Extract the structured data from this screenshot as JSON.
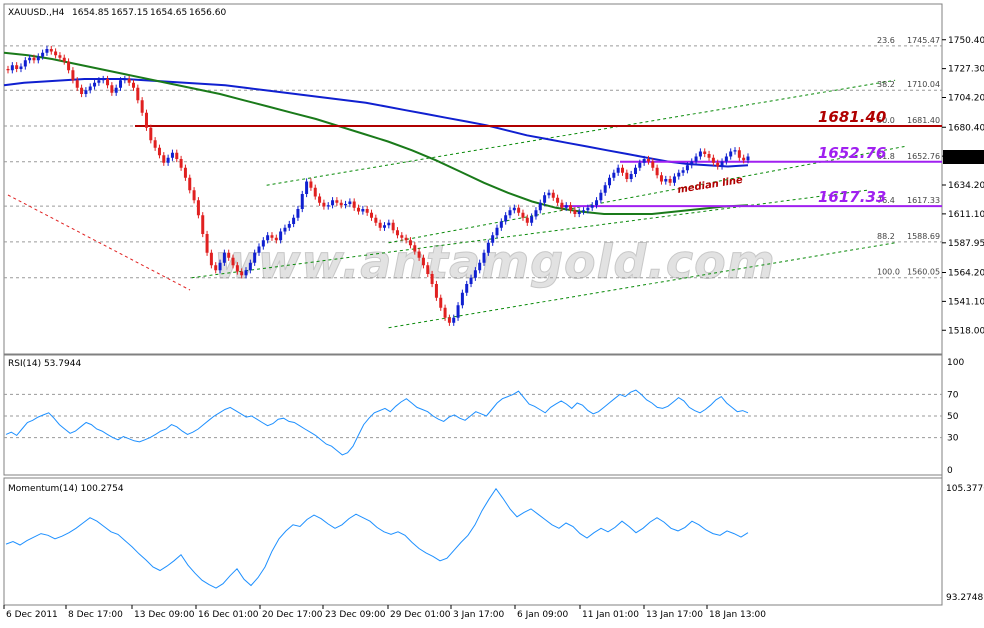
{
  "chart_data": [
    {
      "type": "candlestick",
      "header": {
        "symbol": "XAUUSD.,H4",
        "open": "1654.85",
        "high": "1657.15",
        "low": "1654.65",
        "close": "1656.60"
      },
      "price_axis": {
        "ticks": [
          "1750.40",
          "1727.30",
          "1704.20",
          "1680.40",
          "1657.30",
          "1634.20",
          "1611.10",
          "1587.95",
          "1564.20",
          "1541.10",
          "1518.00"
        ],
        "current": "1656.60"
      },
      "x_ticks": [
        "6 Dec 2011",
        "8 Dec 17:00",
        "13 Dec 09:00",
        "16 Dec 01:00",
        "20 Dec 17:00",
        "23 Dec 09:00",
        "29 Dec 01:00",
        "3 Jan 17:00",
        "6 Jan 09:00",
        "11 Jan 01:00",
        "13 Jan 17:00",
        "18 Jan 13:00"
      ],
      "fibonacci": [
        {
          "ratio": "23.6",
          "price": "1745.47"
        },
        {
          "ratio": "38.2",
          "price": "1710.04"
        },
        {
          "ratio": "50.0",
          "price": "1681.40"
        },
        {
          "ratio": "61.8",
          "price": "1652.76"
        },
        {
          "ratio": "76.4",
          "price": "1617.33"
        },
        {
          "ratio": "88.2",
          "price": "1588.69"
        },
        {
          "ratio": "100.0",
          "price": "1560.05"
        }
      ],
      "levels": [
        {
          "label": "1681.40",
          "price": 1681.4,
          "color": "#b00000"
        },
        {
          "label": "1652.76",
          "price": 1652.76,
          "color": "#a020f0"
        },
        {
          "label": "1617.33",
          "price": 1617.33,
          "color": "#a020f0"
        }
      ],
      "annotation": "median line",
      "watermark": "www.antamgold.com",
      "close": [
        1726,
        1730,
        1727,
        1729,
        1734,
        1736,
        1734,
        1737,
        1740,
        1743,
        1741,
        1738,
        1736,
        1733,
        1726,
        1718,
        1712,
        1707,
        1710,
        1713,
        1716,
        1718,
        1719,
        1714,
        1708,
        1712,
        1718,
        1719,
        1716,
        1712,
        1702,
        1692,
        1680,
        1670,
        1664,
        1658,
        1652,
        1656,
        1660,
        1655,
        1648,
        1640,
        1630,
        1622,
        1610,
        1595,
        1580,
        1570,
        1566,
        1572,
        1580,
        1576,
        1570,
        1565,
        1562,
        1566,
        1572,
        1580,
        1585,
        1590,
        1594,
        1592,
        1590,
        1597,
        1600,
        1603,
        1608,
        1615,
        1627,
        1637,
        1632,
        1625,
        1620,
        1617,
        1618,
        1622,
        1620,
        1618,
        1619,
        1621,
        1616,
        1613,
        1615,
        1612,
        1608,
        1604,
        1600,
        1602,
        1604,
        1598,
        1594,
        1592,
        1590,
        1586,
        1581,
        1576,
        1570,
        1563,
        1555,
        1544,
        1536,
        1528,
        1524,
        1528,
        1538,
        1548,
        1555,
        1560,
        1566,
        1572,
        1580,
        1588,
        1594,
        1600,
        1605,
        1610,
        1614,
        1616,
        1612,
        1608,
        1604,
        1609,
        1614,
        1620,
        1626,
        1628,
        1624,
        1620,
        1616,
        1618,
        1614,
        1611,
        1613,
        1614,
        1616,
        1618,
        1622,
        1628,
        1634,
        1640,
        1644,
        1648,
        1644,
        1639,
        1643,
        1648,
        1652,
        1655,
        1653,
        1648,
        1642,
        1637,
        1639,
        1636,
        1641,
        1644,
        1646,
        1650,
        1653,
        1657,
        1661,
        1659,
        1656,
        1652,
        1649,
        1653,
        1657,
        1661,
        1662,
        1656,
        1654,
        1657
      ],
      "ma_blue": [
        1714,
        1716,
        1717,
        1718,
        1719,
        1719,
        1719,
        1718,
        1717,
        1716,
        1715,
        1714,
        1712,
        1710,
        1708,
        1706,
        1704,
        1702,
        1700,
        1697,
        1694,
        1691,
        1688,
        1685,
        1682,
        1678,
        1674,
        1671,
        1668,
        1665,
        1662,
        1659,
        1656,
        1653,
        1651,
        1650,
        1649,
        1650
      ],
      "ma_green": [
        1740,
        1738,
        1735,
        1731,
        1727,
        1723,
        1719,
        1715,
        1711,
        1707,
        1702,
        1697,
        1692,
        1687,
        1681,
        1675,
        1669,
        1662,
        1654,
        1645,
        1636,
        1628,
        1621,
        1616,
        1613,
        1611,
        1611,
        1611,
        1613,
        1615,
        1617,
        1618
      ],
      "channel": [
        {
          "x": [
            0.2,
            0.92
          ],
          "y": [
            1560,
            1630
          ]
        },
        {
          "x": [
            0.28,
            0.95
          ],
          "y": [
            1634,
            1718
          ]
        },
        {
          "x": [
            0.41,
            0.95
          ],
          "y": [
            1520,
            1588
          ]
        },
        {
          "x": [
            0.41,
            0.96
          ],
          "y": [
            1588,
            1665
          ]
        }
      ]
    },
    {
      "type": "line",
      "title": "RSI(14) 53.7944",
      "yticks": [
        "100",
        "70",
        "50",
        "30",
        "0"
      ],
      "values": [
        33,
        35,
        32,
        38,
        44,
        46,
        49,
        51,
        53,
        48,
        42,
        38,
        34,
        36,
        40,
        44,
        42,
        38,
        36,
        33,
        30,
        28,
        31,
        29,
        27,
        26,
        28,
        30,
        33,
        36,
        38,
        42,
        40,
        36,
        33,
        35,
        38,
        42,
        46,
        50,
        53,
        56,
        58,
        55,
        52,
        49,
        50,
        47,
        44,
        41,
        43,
        47,
        48,
        45,
        44,
        41,
        38,
        35,
        32,
        28,
        24,
        22,
        18,
        14,
        16,
        22,
        32,
        42,
        48,
        53,
        55,
        57,
        54,
        59,
        63,
        66,
        62,
        58,
        56,
        54,
        50,
        47,
        45,
        49,
        51,
        48,
        46,
        50,
        54,
        52,
        50,
        56,
        62,
        66,
        68,
        70,
        73,
        67,
        61,
        59,
        56,
        53,
        58,
        61,
        64,
        61,
        57,
        62,
        60,
        55,
        52,
        54,
        58,
        62,
        66,
        70,
        68,
        72,
        74,
        70,
        65,
        62,
        58,
        57,
        59,
        63,
        67,
        64,
        58,
        55,
        53,
        56,
        60,
        65,
        68,
        62,
        58,
        54,
        55,
        53
      ]
    },
    {
      "type": "line",
      "title": "Momentum(14) 100.2754",
      "yticks": [
        "105.3776",
        "93.2748"
      ],
      "values": [
        99.0,
        99.3,
        98.9,
        99.4,
        99.8,
        100.2,
        100.0,
        99.6,
        99.9,
        100.3,
        100.8,
        101.4,
        102.0,
        101.6,
        101.0,
        100.4,
        100.1,
        99.4,
        98.7,
        97.9,
        97.2,
        96.4,
        96.0,
        96.5,
        97.1,
        97.8,
        96.6,
        95.7,
        94.9,
        94.4,
        94.0,
        94.5,
        95.4,
        96.2,
        95.0,
        94.3,
        95.2,
        96.4,
        98.2,
        99.6,
        100.5,
        101.2,
        101.0,
        101.8,
        102.3,
        101.9,
        101.3,
        100.8,
        101.2,
        101.9,
        102.4,
        102.0,
        101.6,
        100.9,
        100.4,
        100.1,
        100.4,
        100.0,
        99.2,
        98.5,
        98.0,
        97.6,
        97.1,
        97.4,
        98.3,
        99.2,
        100.0,
        101.2,
        102.8,
        104.1,
        105.3,
        104.2,
        103.0,
        102.1,
        102.6,
        103.0,
        102.4,
        101.8,
        101.2,
        100.8,
        101.4,
        101.0,
        100.2,
        99.7,
        100.3,
        100.8,
        100.4,
        100.9,
        101.6,
        101.0,
        100.3,
        100.8,
        101.5,
        102.0,
        101.5,
        100.8,
        100.5,
        100.9,
        101.6,
        101.2,
        100.6,
        100.2,
        100.0,
        100.5,
        100.2,
        99.8,
        100.3
      ]
    }
  ]
}
